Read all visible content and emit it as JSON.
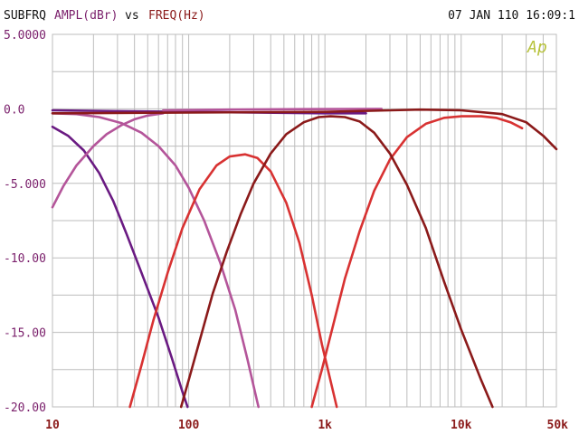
{
  "header": {
    "title_prefix": "SUBFRQ",
    "y_quantity": "AMPL(dBr)",
    "connector": "vs",
    "x_quantity": "FREQ(Hz)",
    "timestamp": "07 JAN 110 16:09:1"
  },
  "logo_text": "Ap",
  "colors": {
    "background": "#ffffff",
    "grid": "#bdbdbd",
    "header_text": "#111111",
    "y_quantity": "#7a1f6b",
    "x_quantity": "#8b1a1a",
    "y_ticks": "#7a1f6b",
    "x_ticks": "#8b1a1a",
    "logo": "#b7c23b"
  },
  "chart_data": {
    "type": "line",
    "x_scale": "log",
    "xlim": [
      10,
      50000
    ],
    "ylim": [
      -20,
      5
    ],
    "grid": true,
    "x_tick_labels": [
      {
        "value": 10,
        "label": "10"
      },
      {
        "value": 100,
        "label": "100"
      },
      {
        "value": 1000,
        "label": "1k"
      },
      {
        "value": 10000,
        "label": "10k"
      },
      {
        "value": 50000,
        "label": "50k"
      }
    ],
    "y_tick_labels": [
      {
        "value": 5,
        "label": "5.0000"
      },
      {
        "value": 0,
        "label": "0.0"
      },
      {
        "value": -5,
        "label": "-5.000"
      },
      {
        "value": -10,
        "label": "-10.00"
      },
      {
        "value": -15,
        "label": "-15.00"
      },
      {
        "value": -20,
        "label": "-20.00"
      }
    ],
    "series": [
      {
        "color": "#6a1a82",
        "points": [
          [
            10,
            -1.2
          ],
          [
            13,
            -1.8
          ],
          [
            17,
            -2.8
          ],
          [
            22,
            -4.3
          ],
          [
            28,
            -6.2
          ],
          [
            35,
            -8.4
          ],
          [
            45,
            -11.0
          ],
          [
            60,
            -14.0
          ],
          [
            75,
            -16.7
          ],
          [
            90,
            -19.0
          ],
          [
            98,
            -20.0
          ]
        ]
      },
      {
        "color": "#6a1a82",
        "points": [
          [
            10,
            -0.1
          ],
          [
            30,
            -0.15
          ],
          [
            100,
            -0.2
          ],
          [
            300,
            -0.25
          ],
          [
            1000,
            -0.3
          ],
          [
            2000,
            -0.3
          ]
        ]
      },
      {
        "color": "#b4559a",
        "points": [
          [
            10,
            -0.3
          ],
          [
            15,
            -0.35
          ],
          [
            22,
            -0.55
          ],
          [
            32,
            -0.95
          ],
          [
            45,
            -1.6
          ],
          [
            60,
            -2.5
          ],
          [
            80,
            -3.8
          ],
          [
            100,
            -5.3
          ],
          [
            130,
            -7.5
          ],
          [
            170,
            -10.3
          ],
          [
            220,
            -13.5
          ],
          [
            270,
            -16.8
          ],
          [
            310,
            -19.2
          ],
          [
            325,
            -20.0
          ]
        ]
      },
      {
        "color": "#b4559a",
        "points": [
          [
            10,
            -6.6
          ],
          [
            12,
            -5.2
          ],
          [
            15,
            -3.8
          ],
          [
            20,
            -2.5
          ],
          [
            25,
            -1.7
          ],
          [
            32,
            -1.1
          ],
          [
            40,
            -0.7
          ],
          [
            50,
            -0.45
          ],
          [
            65,
            -0.3
          ]
        ]
      },
      {
        "color": "#b4559a",
        "points": [
          [
            65,
            -0.1
          ],
          [
            200,
            -0.05
          ],
          [
            700,
            -0.02
          ],
          [
            2600,
            0.0
          ]
        ]
      },
      {
        "color": "#d83232",
        "points": [
          [
            37,
            -20.0
          ],
          [
            45,
            -17.2
          ],
          [
            55,
            -14.2
          ],
          [
            70,
            -11.0
          ],
          [
            90,
            -8.0
          ],
          [
            120,
            -5.4
          ],
          [
            160,
            -3.8
          ],
          [
            200,
            -3.2
          ],
          [
            260,
            -3.05
          ],
          [
            320,
            -3.3
          ],
          [
            400,
            -4.2
          ],
          [
            520,
            -6.3
          ],
          [
            650,
            -9.0
          ],
          [
            800,
            -12.5
          ],
          [
            950,
            -15.8
          ],
          [
            1150,
            -19.0
          ],
          [
            1220,
            -20.0
          ]
        ]
      },
      {
        "color": "#d83232",
        "points": [
          [
            800,
            -20.0
          ],
          [
            950,
            -17.5
          ],
          [
            1150,
            -14.5
          ],
          [
            1400,
            -11.4
          ],
          [
            1800,
            -8.2
          ],
          [
            2300,
            -5.5
          ],
          [
            3000,
            -3.4
          ],
          [
            4000,
            -1.9
          ],
          [
            5500,
            -1.0
          ],
          [
            7500,
            -0.6
          ],
          [
            10000,
            -0.5
          ],
          [
            14000,
            -0.5
          ],
          [
            18000,
            -0.6
          ],
          [
            23000,
            -0.9
          ],
          [
            28000,
            -1.3
          ]
        ]
      },
      {
        "color": "#8b1a1a",
        "points": [
          [
            88,
            -20.0
          ],
          [
            100,
            -18.2
          ],
          [
            120,
            -15.6
          ],
          [
            150,
            -12.4
          ],
          [
            190,
            -9.6
          ],
          [
            240,
            -7.1
          ],
          [
            300,
            -5.0
          ],
          [
            400,
            -3.0
          ],
          [
            520,
            -1.7
          ],
          [
            700,
            -0.9
          ],
          [
            900,
            -0.55
          ],
          [
            1100,
            -0.5
          ],
          [
            1400,
            -0.55
          ],
          [
            1800,
            -0.85
          ],
          [
            2300,
            -1.6
          ],
          [
            3000,
            -3.0
          ],
          [
            4000,
            -5.1
          ],
          [
            5500,
            -8.0
          ],
          [
            7500,
            -11.6
          ],
          [
            10000,
            -14.8
          ],
          [
            14000,
            -18.2
          ],
          [
            17000,
            -20.0
          ]
        ]
      },
      {
        "color": "#8b1a1a",
        "points": [
          [
            10,
            -0.3
          ],
          [
            100,
            -0.25
          ],
          [
            1000,
            -0.2
          ],
          [
            3000,
            -0.1
          ],
          [
            5000,
            -0.05
          ],
          [
            10000,
            -0.1
          ],
          [
            20000,
            -0.35
          ],
          [
            30000,
            -0.9
          ],
          [
            40000,
            -1.8
          ],
          [
            50000,
            -2.7
          ]
        ]
      }
    ]
  }
}
